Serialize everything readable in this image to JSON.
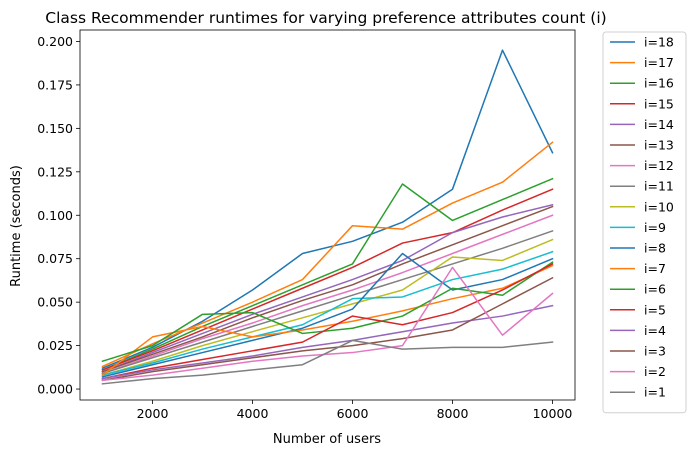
{
  "chart_data": {
    "type": "line",
    "title": "Class Recommender runtimes for varying preference attributes count (i)",
    "xlabel": "Number of users",
    "ylabel": "Runtime (seconds)",
    "xlim": [
      550,
      10450
    ],
    "ylim": [
      -0.0063,
      0.2066
    ],
    "xticks": [
      2000,
      4000,
      6000,
      8000,
      10000
    ],
    "xtick_labels": [
      "2000",
      "4000",
      "6000",
      "8000",
      "10000"
    ],
    "yticks": [
      0.0,
      0.025,
      0.05,
      0.075,
      0.1,
      0.125,
      0.15,
      0.175,
      0.2
    ],
    "ytick_labels": [
      "0.000",
      "0.025",
      "0.050",
      "0.075",
      "0.100",
      "0.125",
      "0.150",
      "0.175",
      "0.200"
    ],
    "grid": false,
    "legend_position": "outside-right",
    "x": [
      1000,
      2000,
      3000,
      4000,
      5000,
      6000,
      7000,
      8000,
      9000,
      10000
    ],
    "series": [
      {
        "name": "i=18",
        "color": "#1f77b4",
        "values": [
          0.012,
          0.024,
          0.039,
          0.057,
          0.078,
          0.085,
          0.096,
          0.115,
          0.195,
          0.136
        ]
      },
      {
        "name": "i=17",
        "color": "#ff7f0e",
        "values": [
          0.013,
          0.026,
          0.038,
          0.05,
          0.063,
          0.094,
          0.092,
          0.107,
          0.119,
          0.142
        ]
      },
      {
        "name": "i=16",
        "color": "#2ca02c",
        "values": [
          0.011,
          0.023,
          0.036,
          0.048,
          0.06,
          0.072,
          0.118,
          0.097,
          0.109,
          0.121
        ]
      },
      {
        "name": "i=15",
        "color": "#d62728",
        "values": [
          0.011,
          0.022,
          0.034,
          0.046,
          0.058,
          0.07,
          0.084,
          0.09,
          0.103,
          0.115
        ]
      },
      {
        "name": "i=14",
        "color": "#9467bd",
        "values": [
          0.01,
          0.021,
          0.032,
          0.043,
          0.053,
          0.063,
          0.074,
          0.09,
          0.099,
          0.106
        ]
      },
      {
        "name": "i=13",
        "color": "#8c564b",
        "values": [
          0.01,
          0.02,
          0.03,
          0.041,
          0.051,
          0.06,
          0.072,
          0.083,
          0.094,
          0.105
        ]
      },
      {
        "name": "i=12",
        "color": "#e377c2",
        "values": [
          0.009,
          0.019,
          0.029,
          0.038,
          0.048,
          0.057,
          0.067,
          0.078,
          0.089,
          0.1
        ]
      },
      {
        "name": "i=11",
        "color": "#7f7f7f",
        "values": [
          0.009,
          0.018,
          0.027,
          0.036,
          0.045,
          0.054,
          0.063,
          0.072,
          0.081,
          0.091
        ]
      },
      {
        "name": "i=10",
        "color": "#bcbd22",
        "values": [
          0.008,
          0.016,
          0.025,
          0.033,
          0.041,
          0.049,
          0.057,
          0.076,
          0.074,
          0.086
        ]
      },
      {
        "name": "i=9",
        "color": "#17becf",
        "values": [
          0.008,
          0.015,
          0.023,
          0.03,
          0.037,
          0.052,
          0.053,
          0.063,
          0.069,
          0.079
        ]
      },
      {
        "name": "i=8",
        "color": "#1f77b4",
        "values": [
          0.007,
          0.014,
          0.021,
          0.028,
          0.035,
          0.046,
          0.078,
          0.057,
          0.063,
          0.075
        ]
      },
      {
        "name": "i=7",
        "color": "#ff7f0e",
        "values": [
          0.008,
          0.03,
          0.036,
          0.03,
          0.034,
          0.039,
          0.045,
          0.052,
          0.058,
          0.071
        ]
      },
      {
        "name": "i=6",
        "color": "#2ca02c",
        "values": [
          0.016,
          0.025,
          0.043,
          0.044,
          0.032,
          0.035,
          0.042,
          0.058,
          0.054,
          0.073
        ]
      },
      {
        "name": "i=5",
        "color": "#d62728",
        "values": [
          0.006,
          0.012,
          0.017,
          0.022,
          0.027,
          0.042,
          0.037,
          0.044,
          0.057,
          0.072
        ]
      },
      {
        "name": "i=4",
        "color": "#9467bd",
        "values": [
          0.006,
          0.011,
          0.015,
          0.019,
          0.024,
          0.028,
          0.033,
          0.038,
          0.042,
          0.048
        ]
      },
      {
        "name": "i=3",
        "color": "#8c564b",
        "values": [
          0.005,
          0.01,
          0.014,
          0.018,
          0.022,
          0.025,
          0.029,
          0.034,
          0.049,
          0.064
        ]
      },
      {
        "name": "i=2",
        "color": "#e377c2",
        "values": [
          0.005,
          0.008,
          0.012,
          0.016,
          0.019,
          0.021,
          0.025,
          0.07,
          0.031,
          0.055
        ]
      },
      {
        "name": "i=1",
        "color": "#7f7f7f",
        "values": [
          0.003,
          0.006,
          0.008,
          0.011,
          0.014,
          0.028,
          0.023,
          0.024,
          0.024,
          0.027
        ]
      }
    ]
  }
}
